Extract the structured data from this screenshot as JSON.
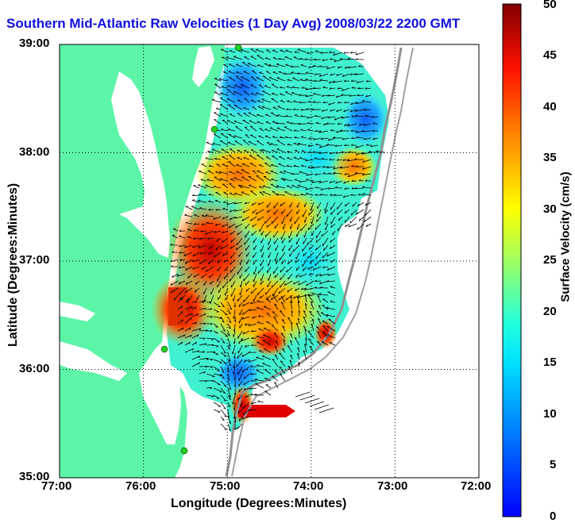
{
  "title": "Southern Mid-Atlantic Raw Velocities (1 Day Avg) 2008/03/22 2200 GMT",
  "x_axis": {
    "label": "Longitude (Degrees:Minutes)",
    "ticks": [
      "77:00",
      "76:00",
      "75:00",
      "74:00",
      "73:00",
      "72:00"
    ]
  },
  "y_axis": {
    "label": "Latitude (Degrees:Minutes)",
    "ticks": [
      "39:00",
      "38:00",
      "37:00",
      "36:00",
      "35:00"
    ]
  },
  "colorbar": {
    "label": "Surface Velocity (cm/s)",
    "ticks": [
      "50",
      "45",
      "40",
      "35",
      "30",
      "25",
      "20",
      "15",
      "10",
      "5",
      "0"
    ],
    "range": [
      0,
      50
    ],
    "colormap": "jet"
  },
  "map_extent": {
    "lon": [
      -77,
      -72
    ],
    "lat": [
      35,
      39
    ]
  },
  "colors": {
    "land": "#5cf5a8",
    "water": "#ffffff",
    "title": "#1010e0"
  }
}
